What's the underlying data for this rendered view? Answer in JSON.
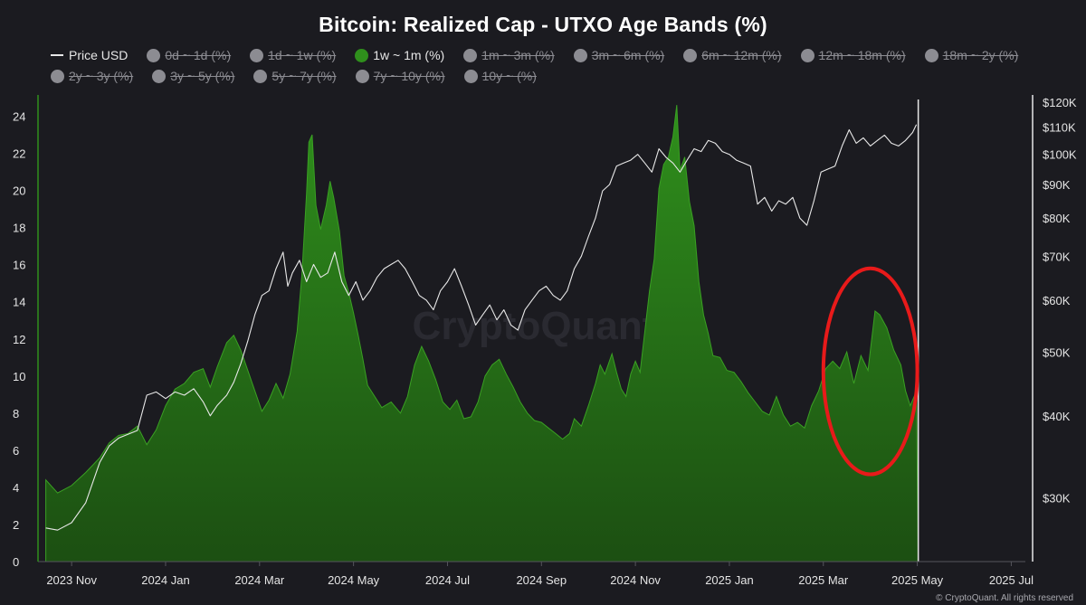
{
  "chart_data": {
    "type": "area",
    "title": "Bitcoin: Realized Cap - UTXO Age Bands (%)",
    "legend": [
      {
        "label": "Price USD",
        "state": "line"
      },
      {
        "label": "0d ~ 1d (%)",
        "state": "hidden"
      },
      {
        "label": "1d ~ 1w (%)",
        "state": "hidden"
      },
      {
        "label": "1w ~ 1m (%)",
        "state": "active"
      },
      {
        "label": "1m ~ 3m (%)",
        "state": "hidden"
      },
      {
        "label": "3m ~ 6m (%)",
        "state": "hidden"
      },
      {
        "label": "6m ~ 12m (%)",
        "state": "hidden"
      },
      {
        "label": "12m ~ 18m (%)",
        "state": "hidden"
      },
      {
        "label": "18m ~ 2y (%)",
        "state": "hidden"
      },
      {
        "label": "2y ~ 3y (%)",
        "state": "hidden"
      },
      {
        "label": "3y ~ 5y (%)",
        "state": "hidden"
      },
      {
        "label": "5y ~ 7y (%)",
        "state": "hidden"
      },
      {
        "label": "7y ~ 10y (%)",
        "state": "hidden"
      },
      {
        "label": "10y ~ (%)",
        "state": "hidden"
      }
    ],
    "x_ticks": [
      "2023 Nov",
      "2024 Jan",
      "2024 Mar",
      "2024 May",
      "2024 Jul",
      "2024 Sep",
      "2024 Nov",
      "2025 Jan",
      "2025 Mar",
      "2025 May",
      "2025 Jul"
    ],
    "x_range_months": [
      -0.6,
      20.3
    ],
    "left_axis": {
      "ticks": [
        0,
        2,
        4,
        6,
        8,
        10,
        12,
        14,
        16,
        18,
        20,
        22,
        24
      ],
      "ylim": [
        0,
        25
      ]
    },
    "right_axis": {
      "scale": "log",
      "ticks": [
        30000,
        40000,
        50000,
        60000,
        70000,
        80000,
        90000,
        100000,
        110000,
        120000
      ],
      "tick_labels": [
        "$30K",
        "$40K",
        "$50K",
        "$60K",
        "$70K",
        "$80K",
        "$90K",
        "$100K",
        "$110K",
        "$120K"
      ],
      "ylim": [
        24000,
        122000
      ]
    },
    "series": [
      {
        "name": "1w ~ 1m (%)",
        "axis": "left",
        "color": "#2f8f1c",
        "points": [
          [
            -0.55,
            4.4
          ],
          [
            -0.3,
            3.7
          ],
          [
            0,
            4.1
          ],
          [
            0.3,
            4.8
          ],
          [
            0.6,
            5.6
          ],
          [
            0.8,
            6.4
          ],
          [
            1.0,
            6.8
          ],
          [
            1.2,
            6.9
          ],
          [
            1.4,
            7.3
          ],
          [
            1.6,
            6.3
          ],
          [
            1.8,
            7.1
          ],
          [
            2.0,
            8.4
          ],
          [
            2.2,
            9.3
          ],
          [
            2.4,
            9.6
          ],
          [
            2.6,
            10.2
          ],
          [
            2.8,
            10.4
          ],
          [
            2.95,
            9.4
          ],
          [
            3.1,
            10.5
          ],
          [
            3.3,
            11.8
          ],
          [
            3.45,
            12.2
          ],
          [
            3.6,
            11.4
          ],
          [
            3.75,
            10.3
          ],
          [
            3.9,
            9.2
          ],
          [
            4.05,
            8.1
          ],
          [
            4.2,
            8.7
          ],
          [
            4.35,
            9.6
          ],
          [
            4.5,
            8.8
          ],
          [
            4.65,
            10.1
          ],
          [
            4.8,
            12.4
          ],
          [
            4.9,
            15.4
          ],
          [
            5.0,
            19.8
          ],
          [
            5.05,
            22.6
          ],
          [
            5.12,
            23.0
          ],
          [
            5.2,
            19.2
          ],
          [
            5.3,
            17.9
          ],
          [
            5.42,
            19.2
          ],
          [
            5.5,
            20.5
          ],
          [
            5.58,
            19.6
          ],
          [
            5.7,
            17.8
          ],
          [
            5.8,
            15.4
          ],
          [
            5.9,
            14.5
          ],
          [
            6.0,
            13.4
          ],
          [
            6.1,
            12.2
          ],
          [
            6.2,
            10.9
          ],
          [
            6.3,
            9.5
          ],
          [
            6.45,
            8.9
          ],
          [
            6.6,
            8.3
          ],
          [
            6.8,
            8.6
          ],
          [
            7.0,
            8.0
          ],
          [
            7.15,
            8.9
          ],
          [
            7.3,
            10.6
          ],
          [
            7.45,
            11.6
          ],
          [
            7.6,
            10.8
          ],
          [
            7.75,
            9.8
          ],
          [
            7.9,
            8.6
          ],
          [
            8.05,
            8.2
          ],
          [
            8.2,
            8.7
          ],
          [
            8.35,
            7.7
          ],
          [
            8.5,
            7.8
          ],
          [
            8.65,
            8.6
          ],
          [
            8.8,
            10.0
          ],
          [
            8.95,
            10.6
          ],
          [
            9.1,
            10.9
          ],
          [
            9.25,
            10.1
          ],
          [
            9.4,
            9.4
          ],
          [
            9.55,
            8.6
          ],
          [
            9.7,
            8.0
          ],
          [
            9.85,
            7.6
          ],
          [
            10.0,
            7.5
          ],
          [
            10.15,
            7.2
          ],
          [
            10.3,
            6.9
          ],
          [
            10.45,
            6.6
          ],
          [
            10.6,
            6.9
          ],
          [
            10.7,
            7.7
          ],
          [
            10.85,
            7.3
          ],
          [
            11.0,
            8.4
          ],
          [
            11.15,
            9.6
          ],
          [
            11.25,
            10.6
          ],
          [
            11.35,
            10.1
          ],
          [
            11.5,
            11.2
          ],
          [
            11.6,
            10.2
          ],
          [
            11.7,
            9.3
          ],
          [
            11.8,
            8.9
          ],
          [
            11.9,
            10.1
          ],
          [
            12.0,
            10.8
          ],
          [
            12.1,
            10.2
          ],
          [
            12.2,
            12.4
          ],
          [
            12.3,
            14.6
          ],
          [
            12.4,
            16.3
          ],
          [
            12.5,
            20.1
          ],
          [
            12.6,
            21.4
          ],
          [
            12.7,
            21.8
          ],
          [
            12.8,
            22.9
          ],
          [
            12.88,
            24.6
          ],
          [
            12.95,
            21.1
          ],
          [
            13.05,
            21.8
          ],
          [
            13.15,
            19.4
          ],
          [
            13.25,
            18.1
          ],
          [
            13.35,
            15.1
          ],
          [
            13.45,
            13.3
          ],
          [
            13.55,
            12.3
          ],
          [
            13.65,
            11.1
          ],
          [
            13.8,
            11.0
          ],
          [
            13.95,
            10.3
          ],
          [
            14.1,
            10.2
          ],
          [
            14.25,
            9.7
          ],
          [
            14.4,
            9.1
          ],
          [
            14.55,
            8.6
          ],
          [
            14.7,
            8.1
          ],
          [
            14.85,
            7.9
          ],
          [
            15.0,
            8.9
          ],
          [
            15.15,
            7.9
          ],
          [
            15.3,
            7.3
          ],
          [
            15.45,
            7.5
          ],
          [
            15.6,
            7.2
          ],
          [
            15.75,
            8.4
          ],
          [
            15.9,
            9.2
          ],
          [
            16.05,
            10.4
          ],
          [
            16.2,
            10.8
          ],
          [
            16.35,
            10.4
          ],
          [
            16.5,
            11.3
          ],
          [
            16.65,
            9.6
          ],
          [
            16.8,
            11.1
          ],
          [
            16.95,
            10.3
          ],
          [
            17.1,
            13.5
          ],
          [
            17.2,
            13.3
          ],
          [
            17.35,
            12.6
          ],
          [
            17.5,
            11.4
          ],
          [
            17.65,
            10.6
          ],
          [
            17.75,
            9.2
          ],
          [
            17.85,
            8.4
          ],
          [
            17.95,
            9.0
          ],
          [
            17.98,
            9.2
          ],
          [
            18.02,
            0
          ]
        ]
      },
      {
        "name": "Price USD",
        "axis": "right",
        "color": "#e8e8e8",
        "points": [
          [
            -0.55,
            27000
          ],
          [
            -0.3,
            26800
          ],
          [
            0,
            27500
          ],
          [
            0.3,
            29500
          ],
          [
            0.6,
            34000
          ],
          [
            0.8,
            36000
          ],
          [
            1.0,
            37000
          ],
          [
            1.2,
            37500
          ],
          [
            1.4,
            38000
          ],
          [
            1.6,
            43000
          ],
          [
            1.8,
            43500
          ],
          [
            2.0,
            42500
          ],
          [
            2.2,
            43500
          ],
          [
            2.4,
            43000
          ],
          [
            2.6,
            44000
          ],
          [
            2.8,
            42000
          ],
          [
            2.95,
            40000
          ],
          [
            3.1,
            41500
          ],
          [
            3.3,
            43000
          ],
          [
            3.45,
            45000
          ],
          [
            3.6,
            48000
          ],
          [
            3.75,
            52000
          ],
          [
            3.9,
            57000
          ],
          [
            4.05,
            61000
          ],
          [
            4.2,
            62000
          ],
          [
            4.35,
            67000
          ],
          [
            4.5,
            71000
          ],
          [
            4.6,
            63000
          ],
          [
            4.7,
            66000
          ],
          [
            4.85,
            69000
          ],
          [
            5.0,
            64000
          ],
          [
            5.15,
            68000
          ],
          [
            5.3,
            65000
          ],
          [
            5.45,
            66000
          ],
          [
            5.6,
            71000
          ],
          [
            5.75,
            64000
          ],
          [
            5.9,
            61000
          ],
          [
            6.05,
            64000
          ],
          [
            6.2,
            60000
          ],
          [
            6.35,
            62000
          ],
          [
            6.5,
            65000
          ],
          [
            6.65,
            67000
          ],
          [
            6.8,
            68000
          ],
          [
            6.95,
            69000
          ],
          [
            7.1,
            67000
          ],
          [
            7.25,
            64000
          ],
          [
            7.4,
            61000
          ],
          [
            7.55,
            60000
          ],
          [
            7.7,
            58000
          ],
          [
            7.85,
            62000
          ],
          [
            8.0,
            64000
          ],
          [
            8.15,
            67000
          ],
          [
            8.3,
            63000
          ],
          [
            8.45,
            59000
          ],
          [
            8.6,
            55000
          ],
          [
            8.75,
            57000
          ],
          [
            8.9,
            59000
          ],
          [
            9.05,
            56000
          ],
          [
            9.2,
            58000
          ],
          [
            9.35,
            55000
          ],
          [
            9.5,
            54000
          ],
          [
            9.65,
            58000
          ],
          [
            9.8,
            60000
          ],
          [
            9.95,
            62000
          ],
          [
            10.1,
            63000
          ],
          [
            10.25,
            61000
          ],
          [
            10.4,
            60000
          ],
          [
            10.55,
            62000
          ],
          [
            10.7,
            67000
          ],
          [
            10.85,
            70000
          ],
          [
            11.0,
            75000
          ],
          [
            11.15,
            80000
          ],
          [
            11.3,
            88000
          ],
          [
            11.45,
            90000
          ],
          [
            11.6,
            96000
          ],
          [
            11.75,
            97000
          ],
          [
            11.9,
            98000
          ],
          [
            12.05,
            100000
          ],
          [
            12.2,
            97000
          ],
          [
            12.35,
            94000
          ],
          [
            12.5,
            102000
          ],
          [
            12.65,
            99000
          ],
          [
            12.8,
            97000
          ],
          [
            12.95,
            94000
          ],
          [
            13.1,
            98000
          ],
          [
            13.25,
            102000
          ],
          [
            13.4,
            101000
          ],
          [
            13.55,
            105000
          ],
          [
            13.7,
            104000
          ],
          [
            13.85,
            101000
          ],
          [
            14.0,
            100000
          ],
          [
            14.15,
            98000
          ],
          [
            14.3,
            97000
          ],
          [
            14.45,
            96000
          ],
          [
            14.6,
            84000
          ],
          [
            14.75,
            86000
          ],
          [
            14.9,
            82000
          ],
          [
            15.05,
            85000
          ],
          [
            15.2,
            84000
          ],
          [
            15.35,
            86000
          ],
          [
            15.5,
            80000
          ],
          [
            15.65,
            78000
          ],
          [
            15.8,
            85000
          ],
          [
            15.95,
            94000
          ],
          [
            16.1,
            95000
          ],
          [
            16.25,
            96000
          ],
          [
            16.4,
            103000
          ],
          [
            16.55,
            109000
          ],
          [
            16.7,
            104000
          ],
          [
            16.85,
            106000
          ],
          [
            17.0,
            103000
          ],
          [
            17.15,
            105000
          ],
          [
            17.3,
            107000
          ],
          [
            17.45,
            104000
          ],
          [
            17.6,
            103000
          ],
          [
            17.75,
            105000
          ],
          [
            17.9,
            108000
          ],
          [
            17.98,
            111000
          ]
        ]
      }
    ],
    "annotations": [
      {
        "type": "ellipse",
        "color": "#e81a1a",
        "x_months": [
          16.0,
          18.0
        ],
        "y_pct": [
          4.7,
          15.8
        ]
      }
    ],
    "watermark": "CryptoQuant"
  },
  "footer": {
    "copyright": "© CryptoQuant. All rights reserved"
  }
}
